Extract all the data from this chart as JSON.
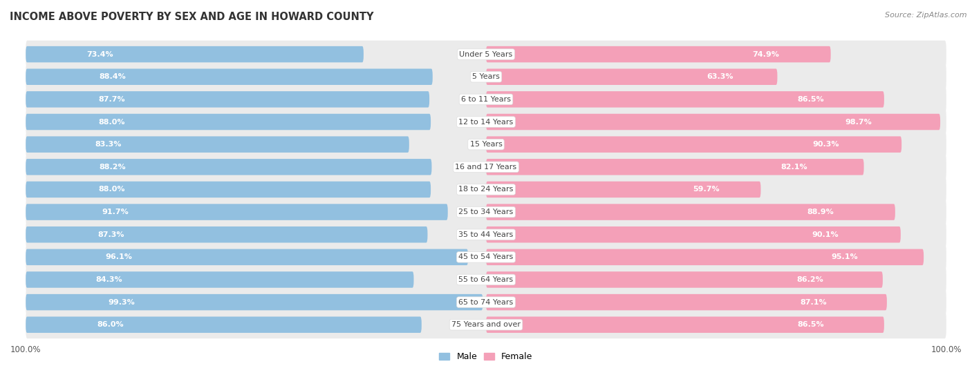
{
  "title": "INCOME ABOVE POVERTY BY SEX AND AGE IN HOWARD COUNTY",
  "source": "Source: ZipAtlas.com",
  "categories": [
    "Under 5 Years",
    "5 Years",
    "6 to 11 Years",
    "12 to 14 Years",
    "15 Years",
    "16 and 17 Years",
    "18 to 24 Years",
    "25 to 34 Years",
    "35 to 44 Years",
    "45 to 54 Years",
    "55 to 64 Years",
    "65 to 74 Years",
    "75 Years and over"
  ],
  "male_values": [
    73.4,
    88.4,
    87.7,
    88.0,
    83.3,
    88.2,
    88.0,
    91.7,
    87.3,
    96.1,
    84.3,
    99.3,
    86.0
  ],
  "female_values": [
    74.9,
    63.3,
    86.5,
    98.7,
    90.3,
    82.1,
    59.7,
    88.9,
    90.1,
    95.1,
    86.2,
    87.1,
    86.5
  ],
  "male_color": "#92c0e0",
  "female_color": "#f4a0b8",
  "male_label": "Male",
  "female_label": "Female",
  "max_value": 100.0,
  "label_fontsize": 8.0,
  "title_fontsize": 10.5,
  "source_fontsize": 8.0,
  "category_fontsize": 8.0,
  "axis_fontsize": 8.5
}
